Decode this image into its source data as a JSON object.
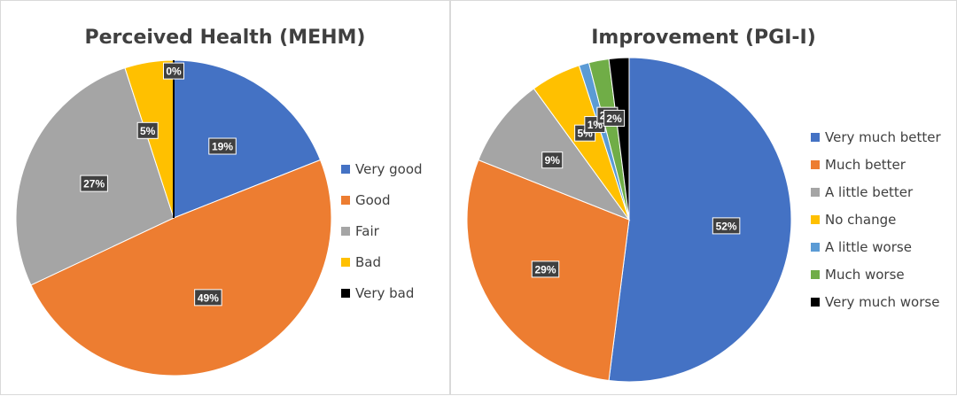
{
  "chart_data": [
    {
      "type": "pie",
      "title": "Perceived Health (MEHM)",
      "categories": [
        "Very good",
        "Good",
        "Fair",
        "Bad",
        "Very bad"
      ],
      "values": [
        19,
        49,
        27,
        5,
        0
      ],
      "data_labels": [
        "19%",
        "49%",
        "27%",
        "5%",
        "0%"
      ],
      "colors": [
        "#4472C4",
        "#ED7D31",
        "#A5A5A5",
        "#FFC000",
        "#000000"
      ],
      "legend": "right"
    },
    {
      "type": "pie",
      "title": "Improvement (PGI-I)",
      "categories": [
        "Very much better",
        "Much better",
        "A little better",
        "No change",
        "A little worse",
        "Much worse",
        "Very much worse"
      ],
      "values": [
        52,
        29,
        9,
        5,
        1,
        2,
        2
      ],
      "data_labels": [
        "52%",
        "29%",
        "9%",
        "5%",
        "1%",
        "2%",
        "2%"
      ],
      "colors": [
        "#4472C4",
        "#ED7D31",
        "#A5A5A5",
        "#FFC000",
        "#5B9BD5",
        "#70AD47",
        "#000000"
      ],
      "legend": "right"
    }
  ]
}
